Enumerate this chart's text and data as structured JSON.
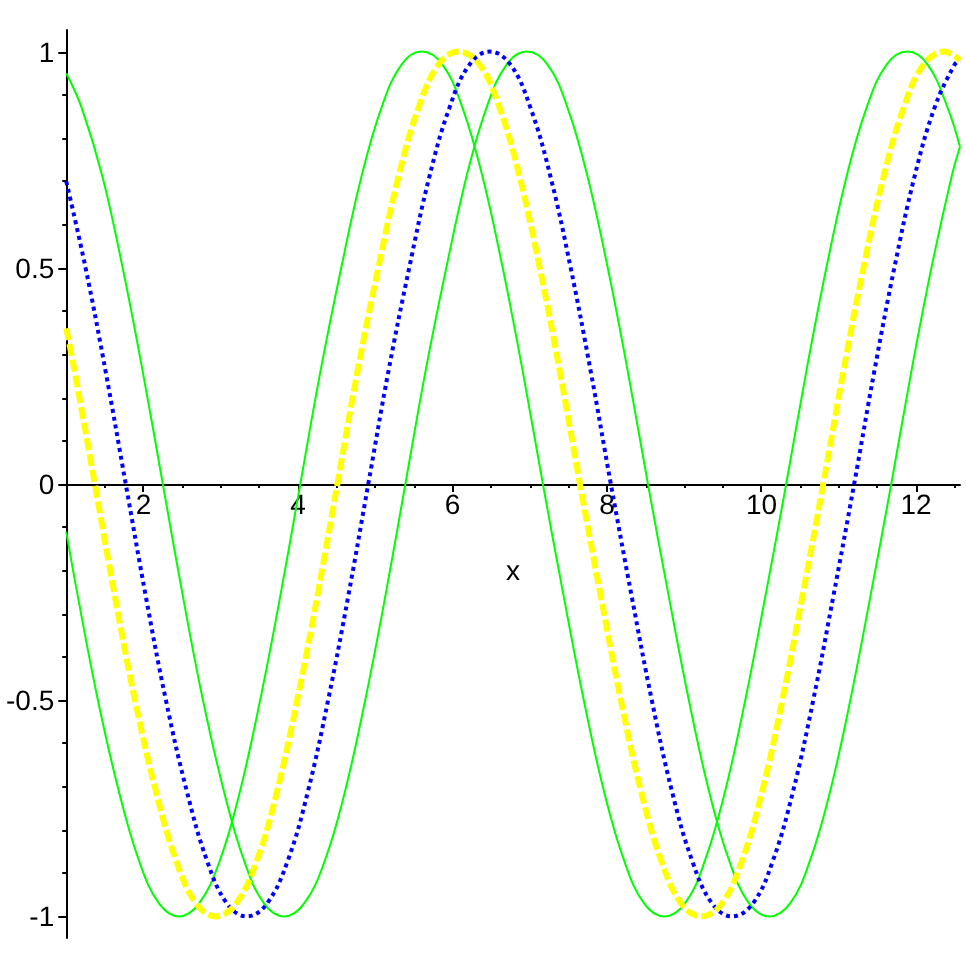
{
  "chart_data": {
    "type": "line",
    "xlabel": "x",
    "xlim": [
      1,
      12.57
    ],
    "xticks": [
      2,
      4,
      6,
      8,
      10,
      12
    ],
    "ylim": [
      -1.05,
      1.05
    ],
    "yticks": [
      -1,
      -0.5,
      0,
      0.5,
      1
    ],
    "grid": false,
    "marker": "none",
    "series": [
      {
        "color": "#00ff00",
        "line_style": "solid",
        "x": [
          1,
          1.2,
          1.47,
          1.73,
          1.99,
          2.25,
          2.51,
          2.77,
          3.04,
          3.3,
          3.56,
          3.82,
          4.08,
          4.35,
          4.61,
          4.87,
          5.13,
          5.39,
          5.65,
          5.92,
          6.18,
          6.44,
          6.7,
          6.96,
          7.23,
          7.49,
          7.75,
          8.01,
          8.27,
          8.53,
          8.8,
          9.06,
          9.32,
          9.58,
          9.84,
          10.1,
          10.37,
          10.63,
          10.89,
          11.15,
          11.41,
          11.68,
          11.94,
          12.2,
          12.46,
          12.57
        ],
        "values": [
          0.95,
          0.87,
          0.71,
          0.5,
          0.26,
          0,
          -0.26,
          -0.5,
          -0.71,
          -0.87,
          -0.97,
          -1,
          -0.97,
          -0.87,
          -0.71,
          -0.5,
          -0.26,
          0,
          0.26,
          0.5,
          0.71,
          0.87,
          0.97,
          1,
          0.97,
          0.87,
          0.71,
          0.5,
          0.26,
          0,
          -0.26,
          -0.5,
          -0.71,
          -0.87,
          -0.97,
          -1,
          -0.97,
          -0.87,
          -0.71,
          -0.5,
          -0.26,
          0,
          0.26,
          0.5,
          0.71,
          0.78
        ]
      },
      {
        "color": "#00ff00",
        "line_style": "solid",
        "x": [
          1,
          1.15,
          1.41,
          1.68,
          1.94,
          2.2,
          2.46,
          2.72,
          2.99,
          3.25,
          3.51,
          3.77,
          4.03,
          4.29,
          4.56,
          4.82,
          5.08,
          5.34,
          5.6,
          5.87,
          6.13,
          6.39,
          6.65,
          6.91,
          7.17,
          7.44,
          7.7,
          7.96,
          8.22,
          8.48,
          8.74,
          9.01,
          9.27,
          9.53,
          9.79,
          10.05,
          10.32,
          10.58,
          10.84,
          11.1,
          11.36,
          11.62,
          11.89,
          12.15,
          12.41,
          12.57
        ],
        "values": [
          -0.11,
          -0.26,
          -0.5,
          -0.71,
          -0.87,
          -0.97,
          -1,
          -0.97,
          -0.87,
          -0.71,
          -0.5,
          -0.26,
          0,
          0.26,
          0.5,
          0.71,
          0.87,
          0.97,
          1,
          0.97,
          0.87,
          0.71,
          0.5,
          0.26,
          0,
          -0.26,
          -0.5,
          -0.71,
          -0.87,
          -0.97,
          -1,
          -0.97,
          -0.87,
          -0.71,
          -0.5,
          -0.26,
          0,
          0.26,
          0.5,
          0.71,
          0.87,
          0.97,
          1,
          0.97,
          0.87,
          0.78
        ]
      },
      {
        "color": "#0000ff",
        "line_style": "dotted",
        "x": [
          1,
          1.25,
          1.51,
          1.77,
          2.03,
          2.29,
          2.56,
          2.82,
          3.08,
          3.34,
          3.6,
          3.87,
          4.13,
          4.39,
          4.65,
          4.91,
          5.17,
          5.44,
          5.7,
          5.96,
          6.22,
          6.48,
          6.75,
          7.01,
          7.27,
          7.53,
          7.79,
          8.05,
          8.32,
          8.58,
          8.84,
          9.1,
          9.36,
          9.62,
          9.89,
          10.15,
          10.41,
          10.67,
          10.93,
          11.2,
          11.46,
          11.72,
          11.98,
          12.24,
          12.5,
          12.57
        ],
        "values": [
          0.7,
          0.5,
          0.26,
          0,
          -0.26,
          -0.5,
          -0.71,
          -0.87,
          -0.97,
          -1,
          -0.97,
          -0.87,
          -0.71,
          -0.5,
          -0.26,
          0,
          0.26,
          0.5,
          0.71,
          0.87,
          0.97,
          1,
          0.97,
          0.87,
          0.71,
          0.5,
          0.26,
          0,
          -0.26,
          -0.5,
          -0.71,
          -0.87,
          -0.97,
          -1,
          -0.97,
          -0.87,
          -0.71,
          -0.5,
          -0.26,
          0,
          0.26,
          0.5,
          0.71,
          0.87,
          0.97,
          0.98
        ]
      },
      {
        "color": "#ffff00",
        "line_style": "dashed",
        "x": [
          1,
          1.11,
          1.37,
          1.63,
          1.89,
          2.16,
          2.42,
          2.68,
          2.94,
          3.2,
          3.47,
          3.73,
          3.99,
          4.25,
          4.51,
          4.77,
          5.04,
          5.3,
          5.56,
          5.82,
          6.08,
          6.35,
          6.61,
          6.87,
          7.13,
          7.39,
          7.65,
          7.92,
          8.18,
          8.44,
          8.7,
          8.96,
          9.22,
          9.49,
          9.75,
          10.01,
          10.27,
          10.53,
          10.8,
          11.06,
          11.32,
          11.58,
          11.84,
          12.1,
          12.37,
          12.57
        ],
        "values": [
          0.36,
          0.26,
          0,
          -0.26,
          -0.5,
          -0.71,
          -0.87,
          -0.97,
          -1,
          -0.97,
          -0.87,
          -0.71,
          -0.5,
          -0.26,
          0,
          0.26,
          0.5,
          0.71,
          0.87,
          0.97,
          1,
          0.97,
          0.87,
          0.71,
          0.5,
          0.26,
          0,
          -0.26,
          -0.5,
          -0.71,
          -0.87,
          -0.97,
          -1,
          -0.97,
          -0.87,
          -0.71,
          -0.5,
          -0.26,
          0,
          0.26,
          0.5,
          0.71,
          0.87,
          0.97,
          1,
          0.98
        ]
      }
    ]
  }
}
